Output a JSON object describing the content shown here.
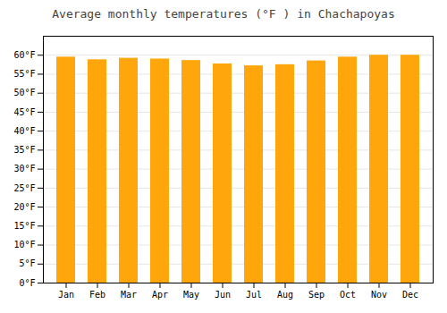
{
  "chart_data": {
    "type": "bar",
    "title": "Average monthly temperatures (°F ) in Chachapoyas",
    "categories": [
      "Jan",
      "Feb",
      "Mar",
      "Apr",
      "May",
      "Jun",
      "Jul",
      "Aug",
      "Sep",
      "Oct",
      "Nov",
      "Dec"
    ],
    "values": [
      59.5,
      58.8,
      59.2,
      59.0,
      58.6,
      57.7,
      57.2,
      57.5,
      58.5,
      59.5,
      60.0,
      60.0
    ],
    "color": "#FFA60D",
    "ylim": [
      0,
      65
    ],
    "yticks": [
      {
        "value": 0,
        "label": "0°F"
      },
      {
        "value": 5,
        "label": "5°F"
      },
      {
        "value": 10,
        "label": "10°F"
      },
      {
        "value": 15,
        "label": "15°F"
      },
      {
        "value": 20,
        "label": "20°F"
      },
      {
        "value": 25,
        "label": "25°F"
      },
      {
        "value": 30,
        "label": "30°F"
      },
      {
        "value": 35,
        "label": "35°F"
      },
      {
        "value": 40,
        "label": "40°F"
      },
      {
        "value": 45,
        "label": "45°F"
      },
      {
        "value": 50,
        "label": "50°F"
      },
      {
        "value": 55,
        "label": "55°F"
      },
      {
        "value": 60,
        "label": "60°F"
      }
    ],
    "grid": true
  }
}
